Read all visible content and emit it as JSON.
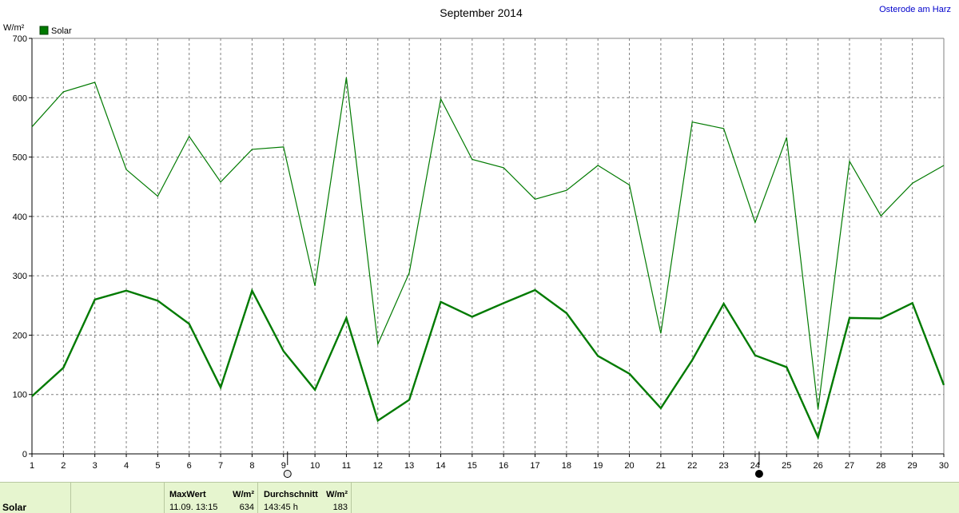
{
  "location_link": "Osterode am Harz",
  "chart_data": {
    "type": "line",
    "title": "September 2014",
    "ylabel": "W/m²",
    "ylim": [
      0,
      700
    ],
    "yticks": [
      0,
      100,
      200,
      300,
      400,
      500,
      600,
      700
    ],
    "x": [
      1,
      2,
      3,
      4,
      5,
      6,
      7,
      8,
      9,
      10,
      11,
      12,
      13,
      14,
      15,
      16,
      17,
      18,
      19,
      20,
      21,
      22,
      23,
      24,
      25,
      26,
      27,
      28,
      29,
      30
    ],
    "grid": true,
    "legend": "top-left",
    "moon_markers": [
      {
        "day": 9,
        "phase": "full-moon"
      },
      {
        "day": 24,
        "phase": "new-moon"
      }
    ],
    "series": [
      {
        "name": "Solar",
        "role": "daily-max",
        "color": "#007a00",
        "values": [
          551,
          610,
          626,
          479,
          434,
          535,
          458,
          513,
          517,
          283,
          634,
          185,
          305,
          598,
          496,
          482,
          429,
          444,
          486,
          453,
          203,
          559,
          548,
          390,
          533,
          75,
          493,
          401,
          456,
          486
        ]
      },
      {
        "name": "Solar",
        "role": "daily-average",
        "color": "#007a00",
        "values": [
          97,
          145,
          260,
          275,
          258,
          219,
          112,
          275,
          173,
          108,
          229,
          56,
          91,
          256,
          231,
          254,
          276,
          237,
          165,
          135,
          77,
          158,
          253,
          166,
          146,
          28,
          229,
          228,
          254,
          116
        ]
      }
    ]
  },
  "footer": {
    "row_label": "Solar",
    "max_header": "MaxWert",
    "max_unit": "W/m²",
    "max_datetime": "11.09.  13:15",
    "max_value": "634",
    "avg_header": "Durchschnitt",
    "avg_unit": "W/m²",
    "avg_duration": "143:45 h",
    "avg_value": "183"
  }
}
